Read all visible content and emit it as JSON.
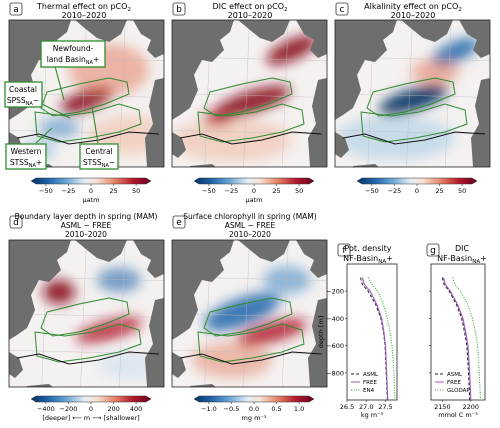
{
  "panels": [
    {
      "letter": "a",
      "title1": "Thermal effect on pCO",
      "sub": "2",
      "title2": "2010–2020"
    },
    {
      "letter": "b",
      "title1": "DIC effect on pCO",
      "sub": "2",
      "title2": "2010–2020"
    },
    {
      "letter": "c",
      "title1": "Alkalinity effect on pCO",
      "sub": "2",
      "title2": "2010–2020"
    },
    {
      "letter": "d",
      "title1": "Boundary layer depth in spring (MAM)",
      "title1b": "ASML − FREE",
      "title2": "2010–2020"
    },
    {
      "letter": "e",
      "title1": "Surface chlorophyll in spring (MAM)",
      "title1b": "ASML − FREE",
      "title2": "2010–2020"
    }
  ],
  "region_labels": {
    "newfoundland": [
      "Newfound-",
      "land Basin",
      "NA",
      "+"
    ],
    "coastal": [
      "Coastal",
      "SPSS",
      "NA",
      "−"
    ],
    "western": [
      "Western",
      "STSS",
      "NA",
      "+"
    ],
    "central": [
      "Central",
      "STSS",
      "NA",
      "−"
    ]
  },
  "colorbars": [
    {
      "ticks": [
        "−50",
        "−25",
        "0",
        "25",
        "50"
      ],
      "label": "µatm"
    },
    {
      "ticks": [
        "−50",
        "−25",
        "0",
        "25",
        "50"
      ],
      "label": "µatm"
    },
    {
      "ticks": [
        "−50",
        "−25",
        "0",
        "25",
        "50"
      ],
      "label": ""
    },
    {
      "ticks": [
        "−400",
        "−200",
        "0",
        "200",
        "400"
      ],
      "label": "[deeper] ⟵    m    ⟶ [shallower]"
    },
    {
      "ticks": [
        "−1.0",
        "−0.5",
        "0.0",
        "0.5",
        "1.0"
      ],
      "label": "mg m⁻³"
    }
  ],
  "colors": {
    "red": "#b2182b",
    "blue": "#2166ac",
    "land": "#6e6e6e",
    "green": "#2e8b2e",
    "asml": "#222222",
    "free": "#9b59b6",
    "obs": "#2ca02c"
  },
  "chart_data": [
    {
      "type": "line",
      "panel": "f",
      "title": "Pot. density",
      "title2": "NF-Basin",
      "title2_sub": "NA",
      "title2_suffix": "+",
      "xlabel": "kg m⁻³",
      "ylabel": "depth [m]",
      "xlim": [
        26.5,
        27.8
      ],
      "ylim": [
        -1000,
        0
      ],
      "xticks": [
        "26.5",
        "27.0",
        "27.5"
      ],
      "yticks": [
        "−200",
        "−400",
        "−600",
        "−800"
      ],
      "series": [
        {
          "name": "ASML",
          "style": "dashed",
          "x": [
            26.85,
            26.9,
            27.05,
            27.25,
            27.38,
            27.45,
            27.49,
            27.52,
            27.55
          ],
          "y": [
            -100,
            -150,
            -200,
            -300,
            -400,
            -500,
            -600,
            -800,
            -1000
          ]
        },
        {
          "name": "FREE",
          "style": "solid",
          "x": [
            26.9,
            26.95,
            27.1,
            27.28,
            27.4,
            27.46,
            27.5,
            27.53,
            27.56
          ],
          "y": [
            -100,
            -150,
            -200,
            -300,
            -400,
            -500,
            -600,
            -800,
            -1000
          ]
        },
        {
          "name": "EN4",
          "style": "dotted",
          "x": [
            27.05,
            27.15,
            27.3,
            27.45,
            27.55,
            27.62,
            27.67,
            27.72,
            27.75
          ],
          "y": [
            -100,
            -150,
            -200,
            -300,
            -400,
            -500,
            -600,
            -800,
            -1000
          ]
        }
      ]
    },
    {
      "type": "line",
      "panel": "g",
      "title": "DIC",
      "title2": "NF-Basin",
      "title2_sub": "NA",
      "title2_suffix": "+",
      "xlabel": "mmol C m⁻³",
      "ylabel": "",
      "xlim": [
        2130,
        2225
      ],
      "ylim": [
        -1000,
        0
      ],
      "xticks": [
        "2150",
        "2200"
      ],
      "yticks": [],
      "series": [
        {
          "name": "ASML",
          "style": "dashed",
          "x": [
            2150,
            2153,
            2162,
            2175,
            2184,
            2189,
            2193,
            2196,
            2198
          ],
          "y": [
            -100,
            -150,
            -200,
            -300,
            -400,
            -500,
            -600,
            -800,
            -1000
          ]
        },
        {
          "name": "FREE",
          "style": "solid",
          "x": [
            2152,
            2155,
            2164,
            2177,
            2186,
            2191,
            2195,
            2198,
            2200
          ],
          "y": [
            -100,
            -150,
            -200,
            -300,
            -400,
            -500,
            -600,
            -800,
            -1000
          ]
        },
        {
          "name": "GLODAP",
          "style": "dotted",
          "x": [
            2168,
            2172,
            2182,
            2195,
            2203,
            2208,
            2212,
            2215,
            2217
          ],
          "y": [
            -100,
            -150,
            -200,
            -300,
            -400,
            -500,
            -600,
            -800,
            -1000
          ]
        }
      ]
    }
  ]
}
